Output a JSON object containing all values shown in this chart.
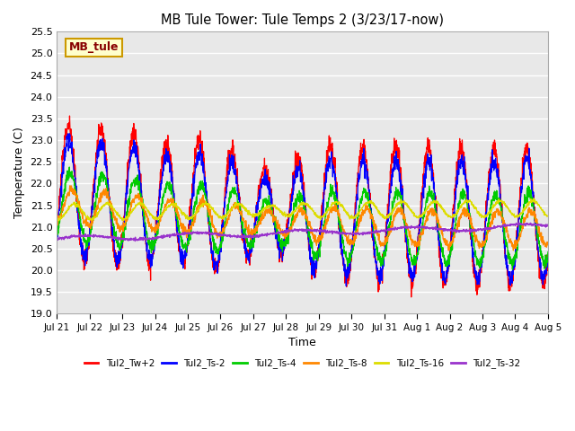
{
  "title": "MB Tule Tower: Tule Temps 2 (3/23/17-now)",
  "xlabel": "Time",
  "ylabel": "Temperature (C)",
  "ylim": [
    19.0,
    25.5
  ],
  "yticks": [
    19.0,
    19.5,
    20.0,
    20.5,
    21.0,
    21.5,
    22.0,
    22.5,
    23.0,
    23.5,
    24.0,
    24.5,
    25.0,
    25.5
  ],
  "plot_bg_color": "#e8e8e8",
  "series_colors": [
    "#ff0000",
    "#0000ff",
    "#00cc00",
    "#ff8800",
    "#dddd00",
    "#9933cc"
  ],
  "series_labels": [
    "Tul2_Tw+2",
    "Tul2_Ts-2",
    "Tul2_Ts-4",
    "Tul2_Ts-8",
    "Tul2_Ts-16",
    "Tul2_Ts-32"
  ],
  "xtick_labels": [
    "Jul 21",
    "Jul 22",
    "Jul 23",
    "Jul 24",
    "Jul 25",
    "Jul 26",
    "Jul 27",
    "Jul 28",
    "Jul 29",
    "Jul 30",
    "Jul 31",
    "Aug 1",
    "Aug 2",
    "Aug 3",
    "Aug 4",
    "Aug 5"
  ],
  "watermark_text": "MB_tule",
  "watermark_color": "#880000",
  "watermark_bg": "#ffffcc",
  "watermark_border": "#cc9900",
  "n_days": 15,
  "ppd": 144
}
